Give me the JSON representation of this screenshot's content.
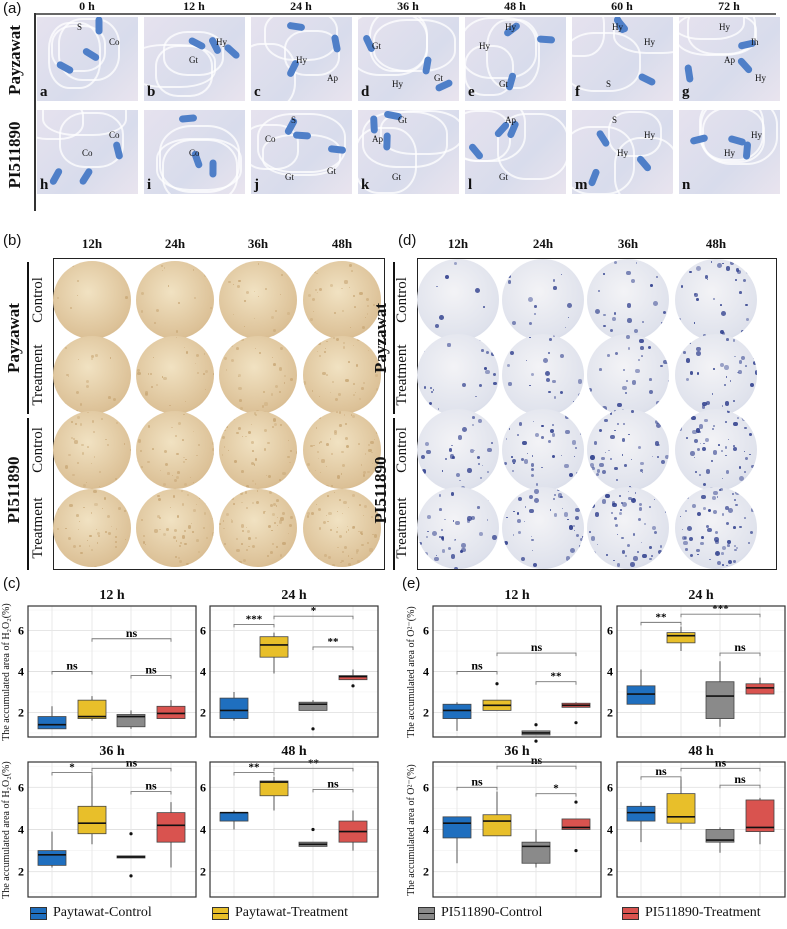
{
  "panel_a": {
    "label": "(a)",
    "columns": [
      "0 h",
      "12 h",
      "24 h",
      "36 h",
      "48 h",
      "60 h",
      "72 h"
    ],
    "rows": [
      "Payzawat",
      "PI511890"
    ],
    "images": [
      {
        "letter": "a",
        "labels": [
          "S",
          "Co"
        ]
      },
      {
        "letter": "b",
        "labels": [
          "Hy",
          "Gt"
        ]
      },
      {
        "letter": "c",
        "labels": [
          "Hy",
          "Ap"
        ]
      },
      {
        "letter": "d",
        "labels": [
          "Gt",
          "Gt",
          "Hy"
        ]
      },
      {
        "letter": "e",
        "labels": [
          "Hy",
          "Gt",
          "Hy"
        ]
      },
      {
        "letter": "f",
        "labels": [
          "S",
          "Hy",
          "Hy"
        ]
      },
      {
        "letter": "g",
        "labels": [
          "Hy",
          "Ih",
          "Ap",
          "Hy"
        ]
      },
      {
        "letter": "h",
        "labels": [
          "Co",
          "Co"
        ]
      },
      {
        "letter": "i",
        "labels": [
          "Co"
        ]
      },
      {
        "letter": "j",
        "labels": [
          "Gt",
          "Co",
          "Gt",
          "S"
        ]
      },
      {
        "letter": "k",
        "labels": [
          "Ap",
          "Gt",
          "Gt"
        ]
      },
      {
        "letter": "l",
        "labels": [
          "Gt",
          "Ap"
        ]
      },
      {
        "letter": "m",
        "labels": [
          "S",
          "Hy",
          "Hy"
        ]
      },
      {
        "letter": "n",
        "labels": [
          "Hy",
          "Hy"
        ]
      }
    ]
  },
  "panel_b": {
    "label": "(b)",
    "columns": [
      "12h",
      "24h",
      "36h",
      "48h"
    ],
    "genotypes": [
      "Payzawat",
      "PI511890"
    ],
    "rows": [
      "Control",
      "Treatment",
      "Control",
      "Treatment"
    ],
    "stain_color": "#c9a877"
  },
  "panel_d": {
    "label": "(d)",
    "columns": [
      "12h",
      "24h",
      "36h",
      "48h"
    ],
    "genotypes": [
      "Payzawat",
      "PI511890"
    ],
    "rows": [
      "Control",
      "Treatment",
      "Control",
      "Treatment"
    ],
    "stain_color": "#2a3a8a"
  },
  "panel_c": {
    "label": "(c)"
  },
  "panel_e": {
    "label": "(e)"
  },
  "legend": [
    {
      "label": "Paytawat-Control",
      "color": "#1f6fbf"
    },
    {
      "label": "Paytawat-Treatment",
      "color": "#e8bf2a"
    },
    {
      "label": "PI511890-Control",
      "color": "#8a8a8a"
    },
    {
      "label": "PI511890-Treatment",
      "color": "#d9534f"
    }
  ],
  "chart_data": [
    {
      "type": "box",
      "panel": "(c)",
      "title": "12 h",
      "ylabel": "The accumulated area of H₂O₂(%)",
      "yticks": [
        2,
        4,
        6
      ],
      "ylim": [
        0.8,
        7.2
      ],
      "grid": true,
      "categories": [
        "Paytawat-Control",
        "Paytawat-Treatment",
        "PI511890-Control",
        "PI511890-Treatment"
      ],
      "boxes": [
        {
          "min": 1.2,
          "q1": 1.2,
          "median": 1.4,
          "q3": 1.8,
          "max": 2.3,
          "outliers": []
        },
        {
          "min": 1.6,
          "q1": 1.7,
          "median": 1.8,
          "q3": 2.6,
          "max": 2.8,
          "outliers": []
        },
        {
          "min": 1.2,
          "q1": 1.3,
          "median": 1.8,
          "q3": 1.9,
          "max": 2.1,
          "outliers": []
        },
        {
          "min": 1.7,
          "q1": 1.7,
          "median": 1.95,
          "q3": 2.3,
          "max": 2.6,
          "outliers": []
        }
      ],
      "comparisons": [
        {
          "groups": [
            1,
            2
          ],
          "y": 4.0,
          "label": "ns"
        },
        {
          "groups": [
            2,
            4
          ],
          "y": 5.6,
          "label": "ns"
        },
        {
          "groups": [
            3,
            4
          ],
          "y": 3.8,
          "label": "ns"
        }
      ]
    },
    {
      "type": "box",
      "panel": "(c)",
      "title": "24 h",
      "ylabel": "",
      "yticks": [
        2,
        4,
        6
      ],
      "ylim": [
        0.8,
        7.2
      ],
      "grid": true,
      "categories": [
        "Paytawat-Control",
        "Paytawat-Treatment",
        "PI511890-Control",
        "PI511890-Treatment"
      ],
      "boxes": [
        {
          "min": 1.6,
          "q1": 1.7,
          "median": 2.1,
          "q3": 2.7,
          "max": 3.0,
          "outliers": []
        },
        {
          "min": 3.9,
          "q1": 4.7,
          "median": 5.3,
          "q3": 5.7,
          "max": 5.9,
          "outliers": []
        },
        {
          "min": 2.1,
          "q1": 2.1,
          "median": 2.4,
          "q3": 2.5,
          "max": 2.6,
          "outliers": [
            1.2
          ]
        },
        {
          "min": 3.6,
          "q1": 3.6,
          "median": 3.75,
          "q3": 3.8,
          "max": 4.1,
          "outliers": [
            3.3
          ]
        }
      ],
      "comparisons": [
        {
          "groups": [
            1,
            2
          ],
          "y": 6.3,
          "label": "***"
        },
        {
          "groups": [
            2,
            4
          ],
          "y": 6.7,
          "label": "*"
        },
        {
          "groups": [
            3,
            4
          ],
          "y": 5.2,
          "label": "**"
        }
      ]
    },
    {
      "type": "box",
      "panel": "(c)",
      "title": "36 h",
      "ylabel": "The accumulated area of H₂O₂(%)",
      "yticks": [
        2,
        4,
        6
      ],
      "ylim": [
        0.8,
        7.2
      ],
      "grid": true,
      "categories": [
        "Paytawat-Control",
        "Paytawat-Treatment",
        "PI511890-Control",
        "PI511890-Treatment"
      ],
      "boxes": [
        {
          "min": 2.2,
          "q1": 2.3,
          "median": 2.8,
          "q3": 3.0,
          "max": 3.9,
          "outliers": []
        },
        {
          "min": 3.3,
          "q1": 3.8,
          "median": 4.3,
          "q3": 5.1,
          "max": 6.7,
          "outliers": []
        },
        {
          "min": 2.65,
          "q1": 2.65,
          "median": 2.7,
          "q3": 2.75,
          "max": 2.75,
          "outliers": [
            3.8,
            1.8
          ]
        },
        {
          "min": 2.2,
          "q1": 3.4,
          "median": 4.2,
          "q3": 4.8,
          "max": 5.3,
          "outliers": []
        }
      ],
      "comparisons": [
        {
          "groups": [
            1,
            2
          ],
          "y": 6.7,
          "label": "*"
        },
        {
          "groups": [
            2,
            4
          ],
          "y": 6.9,
          "label": "ns"
        },
        {
          "groups": [
            3,
            4
          ],
          "y": 5.8,
          "label": "ns"
        }
      ]
    },
    {
      "type": "box",
      "panel": "(c)",
      "title": "48 h",
      "ylabel": "",
      "yticks": [
        2,
        4,
        6
      ],
      "ylim": [
        0.8,
        7.2
      ],
      "grid": true,
      "categories": [
        "Paytawat-Control",
        "Paytawat-Treatment",
        "PI511890-Control",
        "PI511890-Treatment"
      ],
      "boxes": [
        {
          "min": 4.0,
          "q1": 4.4,
          "median": 4.8,
          "q3": 4.8,
          "max": 4.9,
          "outliers": []
        },
        {
          "min": 4.9,
          "q1": 5.6,
          "median": 6.25,
          "q3": 6.3,
          "max": 6.5,
          "outliers": []
        },
        {
          "min": 3.2,
          "q1": 3.2,
          "median": 3.3,
          "q3": 3.4,
          "max": 3.4,
          "outliers": [
            4.0
          ]
        },
        {
          "min": 3.0,
          "q1": 3.4,
          "median": 3.9,
          "q3": 4.4,
          "max": 4.9,
          "outliers": []
        }
      ],
      "comparisons": [
        {
          "groups": [
            1,
            2
          ],
          "y": 6.7,
          "label": "**"
        },
        {
          "groups": [
            2,
            4
          ],
          "y": 6.9,
          "label": "**"
        },
        {
          "groups": [
            3,
            4
          ],
          "y": 5.9,
          "label": "ns"
        }
      ]
    },
    {
      "type": "box",
      "panel": "(e)",
      "title": "12 h",
      "ylabel": "The accumulated area of O²⁻(%)",
      "yticks": [
        2,
        4,
        6
      ],
      "ylim": [
        0.8,
        7.2
      ],
      "grid": true,
      "categories": [
        "Paytawat-Control",
        "Paytawat-Treatment",
        "PI511890-Control",
        "PI511890-Treatment"
      ],
      "boxes": [
        {
          "min": 1.1,
          "q1": 1.7,
          "median": 2.1,
          "q3": 2.4,
          "max": 2.5,
          "outliers": []
        },
        {
          "min": 2.1,
          "q1": 2.1,
          "median": 2.35,
          "q3": 2.6,
          "max": 2.6,
          "outliers": [
            3.4
          ]
        },
        {
          "min": 0.9,
          "q1": 0.9,
          "median": 1.0,
          "q3": 1.1,
          "max": 1.1,
          "outliers": [
            1.4,
            0.6
          ]
        },
        {
          "min": 2.25,
          "q1": 2.25,
          "median": 2.35,
          "q3": 2.45,
          "max": 2.5,
          "outliers": [
            1.5
          ]
        }
      ],
      "comparisons": [
        {
          "groups": [
            1,
            2
          ],
          "y": 4.0,
          "label": "ns"
        },
        {
          "groups": [
            2,
            4
          ],
          "y": 4.9,
          "label": "ns"
        },
        {
          "groups": [
            3,
            4
          ],
          "y": 3.5,
          "label": "**"
        }
      ]
    },
    {
      "type": "box",
      "panel": "(e)",
      "title": "24 h",
      "ylabel": "",
      "yticks": [
        2,
        4,
        6
      ],
      "ylim": [
        0.8,
        7.2
      ],
      "grid": true,
      "categories": [
        "Paytawat-Control",
        "Paytawat-Treatment",
        "PI511890-Control",
        "PI511890-Treatment"
      ],
      "boxes": [
        {
          "min": 2.4,
          "q1": 2.4,
          "median": 2.9,
          "q3": 3.3,
          "max": 4.1,
          "outliers": []
        },
        {
          "min": 5.0,
          "q1": 5.4,
          "median": 5.75,
          "q3": 5.9,
          "max": 6.2,
          "outliers": []
        },
        {
          "min": 1.3,
          "q1": 1.7,
          "median": 2.8,
          "q3": 3.5,
          "max": 4.5,
          "outliers": []
        },
        {
          "min": 2.9,
          "q1": 2.9,
          "median": 3.2,
          "q3": 3.4,
          "max": 3.7,
          "outliers": []
        }
      ],
      "comparisons": [
        {
          "groups": [
            1,
            2
          ],
          "y": 6.4,
          "label": "**"
        },
        {
          "groups": [
            2,
            4
          ],
          "y": 6.8,
          "label": "***"
        },
        {
          "groups": [
            3,
            4
          ],
          "y": 4.9,
          "label": "ns"
        }
      ]
    },
    {
      "type": "box",
      "panel": "(e)",
      "title": "36 h",
      "ylabel": "The accumulated area of O²⁻(%)",
      "yticks": [
        2,
        4,
        6
      ],
      "ylim": [
        0.8,
        7.2
      ],
      "grid": true,
      "categories": [
        "Paytawat-Control",
        "Paytawat-Treatment",
        "PI511890-Control",
        "PI511890-Treatment"
      ],
      "boxes": [
        {
          "min": 2.4,
          "q1": 3.6,
          "median": 4.3,
          "q3": 4.6,
          "max": 4.6,
          "outliers": []
        },
        {
          "min": 3.7,
          "q1": 3.7,
          "median": 4.4,
          "q3": 4.7,
          "max": 5.8,
          "outliers": []
        },
        {
          "min": 2.2,
          "q1": 2.4,
          "median": 3.2,
          "q3": 3.4,
          "max": 4.0,
          "outliers": []
        },
        {
          "min": 4.0,
          "q1": 4.0,
          "median": 4.1,
          "q3": 4.5,
          "max": 4.5,
          "outliers": [
            5.3,
            3.0
          ]
        }
      ],
      "comparisons": [
        {
          "groups": [
            1,
            2
          ],
          "y": 6.0,
          "label": "ns"
        },
        {
          "groups": [
            2,
            4
          ],
          "y": 7.0,
          "label": "ns"
        },
        {
          "groups": [
            3,
            4
          ],
          "y": 5.7,
          "label": "*"
        }
      ]
    },
    {
      "type": "box",
      "panel": "(e)",
      "title": "48 h",
      "ylabel": "",
      "yticks": [
        2,
        4,
        6
      ],
      "ylim": [
        0.8,
        7.2
      ],
      "grid": true,
      "categories": [
        "Paytawat-Control",
        "Paytawat-Treatment",
        "PI511890-Control",
        "PI511890-Treatment"
      ],
      "boxes": [
        {
          "min": 3.4,
          "q1": 4.4,
          "median": 4.8,
          "q3": 5.1,
          "max": 5.3,
          "outliers": []
        },
        {
          "min": 4.0,
          "q1": 4.3,
          "median": 4.6,
          "q3": 5.7,
          "max": 6.5,
          "outliers": []
        },
        {
          "min": 2.9,
          "q1": 3.4,
          "median": 3.5,
          "q3": 4.0,
          "max": 4.1,
          "outliers": []
        },
        {
          "min": 3.3,
          "q1": 3.9,
          "median": 4.1,
          "q3": 5.4,
          "max": 5.5,
          "outliers": []
        }
      ],
      "comparisons": [
        {
          "groups": [
            1,
            2
          ],
          "y": 6.5,
          "label": "ns"
        },
        {
          "groups": [
            2,
            4
          ],
          "y": 6.9,
          "label": "ns"
        },
        {
          "groups": [
            3,
            4
          ],
          "y": 6.1,
          "label": "ns"
        }
      ]
    }
  ]
}
